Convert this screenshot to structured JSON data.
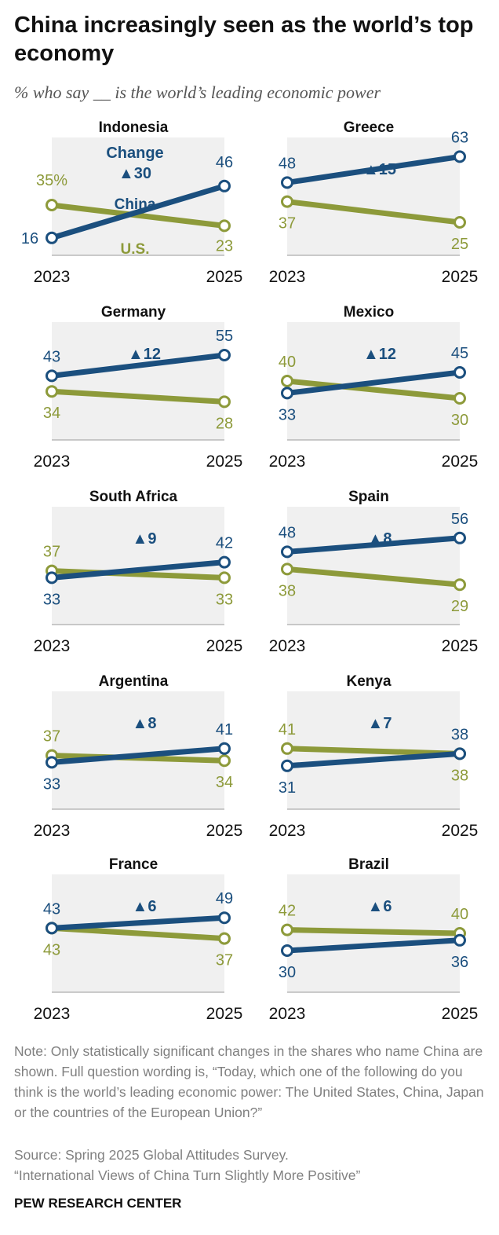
{
  "title": "China increasingly seen as the world’s top economy",
  "subtitle": "% who say __ is the world’s leading economic power",
  "legend": {
    "change_label": "Change",
    "china_label": "China",
    "us_label": "U.S."
  },
  "colors": {
    "china": "#1b4f7e",
    "us": "#8d9a3a",
    "panel_bg": "#f0f0f0",
    "title_text": "#111111",
    "note_text": "#808080"
  },
  "chart_data": {
    "type": "line",
    "title": "China increasingly seen as the world’s top economy",
    "subtitle": "% who say __ is the world’s leading economic power",
    "x": [
      "2023",
      "2025"
    ],
    "series_names": [
      "China",
      "U.S."
    ],
    "panels": [
      {
        "country": "Indonesia",
        "china": [
          16,
          46
        ],
        "us": [
          35,
          23
        ],
        "change": "▲30",
        "china_labels": [
          "16",
          "46"
        ],
        "us_labels": [
          "35%",
          "23"
        ]
      },
      {
        "country": "Greece",
        "china": [
          48,
          63
        ],
        "us": [
          37,
          25
        ],
        "change": "▲15",
        "china_labels": [
          "48",
          "63"
        ],
        "us_labels": [
          "37",
          "25"
        ]
      },
      {
        "country": "Germany",
        "china": [
          43,
          55
        ],
        "us": [
          34,
          28
        ],
        "change": "▲12",
        "china_labels": [
          "43",
          "55"
        ],
        "us_labels": [
          "34",
          "28"
        ]
      },
      {
        "country": "Mexico",
        "china": [
          33,
          45
        ],
        "us": [
          40,
          30
        ],
        "change": "▲12",
        "china_labels": [
          "33",
          "45"
        ],
        "us_labels": [
          "40",
          "30"
        ]
      },
      {
        "country": "South Africa",
        "china": [
          33,
          42
        ],
        "us": [
          37,
          33
        ],
        "change": "▲9",
        "china_labels": [
          "33",
          "42"
        ],
        "us_labels": [
          "37",
          "33"
        ]
      },
      {
        "country": "Spain",
        "china": [
          48,
          56
        ],
        "us": [
          38,
          29
        ],
        "change": "▲8",
        "china_labels": [
          "48",
          "56"
        ],
        "us_labels": [
          "38",
          "29"
        ]
      },
      {
        "country": "Argentina",
        "china": [
          33,
          41
        ],
        "us": [
          37,
          34
        ],
        "change": "▲8",
        "china_labels": [
          "33",
          "41"
        ],
        "us_labels": [
          "37",
          "34"
        ]
      },
      {
        "country": "Kenya",
        "china": [
          31,
          38
        ],
        "us": [
          41,
          38
        ],
        "change": "▲7",
        "china_labels": [
          "31",
          "38"
        ],
        "us_labels": [
          "41",
          "38"
        ]
      },
      {
        "country": "France",
        "china": [
          43,
          49
        ],
        "us": [
          43,
          37
        ],
        "change": "▲6",
        "china_labels": [
          "43",
          "49"
        ],
        "us_labels": [
          "43",
          "37"
        ]
      },
      {
        "country": "Brazil",
        "china": [
          30,
          36
        ],
        "us": [
          42,
          40
        ],
        "change": "▲6",
        "china_labels": [
          "30",
          "36"
        ],
        "us_labels": [
          "42",
          "40"
        ]
      }
    ]
  },
  "note": "Note: Only statistically significant changes in the shares who name China are shown. Full question wording is, “Today, which one of the following do you think is the world’s leading economic power: The United States, China, Japan or the countries of the European Union?”",
  "source_line1": "Source: Spring 2025 Global Attitudes Survey.",
  "source_line2": "“International Views of China Turn Slightly More Positive”",
  "brand": "PEW RESEARCH CENTER"
}
